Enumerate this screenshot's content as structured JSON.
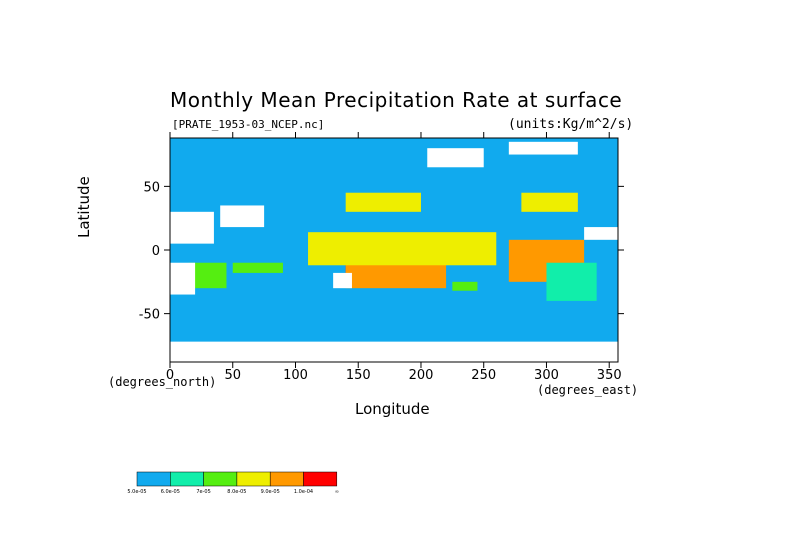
{
  "chart_data": {
    "type": "heatmap",
    "title": "Monthly Mean Precipitation Rate at surface",
    "subtitle_left": "[PRATE_1953-03_NCEP.nc]",
    "subtitle_right": "(units:Kg/m^2/s)",
    "xlabel": "Longitude",
    "ylabel": "Latitude",
    "x_units": "(degrees_east)",
    "y_units": "(degrees_north)",
    "xlim": [
      0,
      357
    ],
    "ylim": [
      -88,
      88
    ],
    "x_ticks": [
      0,
      50,
      100,
      150,
      200,
      250,
      300,
      350
    ],
    "x_tick_labels": [
      "0",
      "50",
      "100",
      "150",
      "200",
      "250",
      "300",
      "350"
    ],
    "y_ticks": [
      -50,
      0,
      50
    ],
    "y_tick_labels": [
      "-50",
      "0",
      "50"
    ],
    "grid": false,
    "colorbar": {
      "placement": "bottom-left",
      "colors": [
        "#11aaee",
        "#11eeaa",
        "#55ee11",
        "#eeee00",
        "#ff9900",
        "#ff0000"
      ],
      "labels": [
        "5.0e-05",
        "6.0e-05",
        "7e-05",
        "8.0e-05",
        "9.0e-05",
        "1.0e-04",
        "∞"
      ]
    },
    "regions": [
      {
        "level": 5,
        "lon": [
          130,
          200
        ],
        "lat": [
          -5,
          10
        ]
      },
      {
        "level": 5,
        "lon": [
          200,
          245
        ],
        "lat": [
          3,
          8
        ]
      },
      {
        "level": 5,
        "lon": [
          140,
          180
        ],
        "lat": [
          -20,
          -5
        ]
      },
      {
        "level": 5,
        "lon": [
          180,
          200
        ],
        "lat": [
          -25,
          -10
        ]
      },
      {
        "level": 5,
        "lon": [
          290,
          310
        ],
        "lat": [
          -15,
          5
        ]
      },
      {
        "level": 5,
        "lon": [
          25,
          35
        ],
        "lat": [
          -25,
          -15
        ]
      },
      {
        "level": 5,
        "lon": [
          155,
          185
        ],
        "lat": [
          35,
          42
        ]
      },
      {
        "level": 5,
        "lon": [
          295,
          315
        ],
        "lat": [
          35,
          42
        ]
      },
      {
        "level": 4,
        "lon": [
          120,
          250
        ],
        "lat": [
          -10,
          12
        ]
      },
      {
        "level": 4,
        "lon": [
          270,
          330
        ],
        "lat": [
          -25,
          8
        ]
      },
      {
        "level": 4,
        "lon": [
          140,
          220
        ],
        "lat": [
          -30,
          -8
        ]
      },
      {
        "level": 3,
        "lon": [
          110,
          260
        ],
        "lat": [
          -12,
          14
        ]
      },
      {
        "level": 3,
        "lon": [
          140,
          200
        ],
        "lat": [
          30,
          45
        ]
      },
      {
        "level": 3,
        "lon": [
          280,
          325
        ],
        "lat": [
          30,
          45
        ]
      },
      {
        "level": 2,
        "lon": [
          15,
          45
        ],
        "lat": [
          -30,
          -10
        ]
      },
      {
        "level": 2,
        "lon": [
          50,
          90
        ],
        "lat": [
          -18,
          -10
        ]
      },
      {
        "level": 2,
        "lon": [
          225,
          245
        ],
        "lat": [
          -32,
          -25
        ]
      },
      {
        "level": 1,
        "lon": [
          300,
          340
        ],
        "lat": [
          -40,
          -10
        ]
      }
    ],
    "missing": [
      {
        "lon": [
          0,
          35
        ],
        "lat": [
          5,
          30
        ]
      },
      {
        "lon": [
          40,
          75
        ],
        "lat": [
          18,
          35
        ]
      },
      {
        "lon": [
          0,
          20
        ],
        "lat": [
          -35,
          -10
        ]
      },
      {
        "lon": [
          130,
          145
        ],
        "lat": [
          -30,
          -18
        ]
      },
      {
        "lon": [
          205,
          250
        ],
        "lat": [
          65,
          80
        ]
      },
      {
        "lon": [
          270,
          325
        ],
        "lat": [
          75,
          85
        ]
      },
      {
        "lon": [
          0,
          357
        ],
        "lat": [
          -88,
          -72
        ]
      },
      {
        "lon": [
          330,
          357
        ],
        "lat": [
          8,
          18
        ]
      }
    ]
  }
}
